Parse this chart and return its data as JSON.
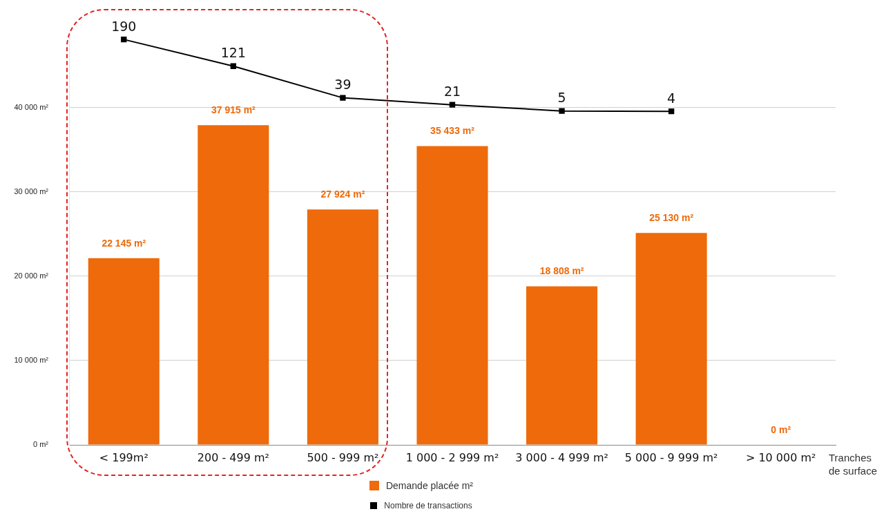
{
  "chart_data": {
    "type": "bar",
    "categories": [
      "< 199m²",
      "200 - 499 m²",
      "500 - 999 m²",
      "1 000 - 2 999 m²",
      "3 000 - 4 999 m²",
      "5 000 - 9 999 m²",
      "> 10 000 m²"
    ],
    "xlabel": "Tranches de surface",
    "series": [
      {
        "name": "Demande placée m²",
        "color": "#ee6a0b",
        "values": [
          22145,
          37915,
          27924,
          35433,
          18808,
          25130,
          0
        ],
        "value_labels": [
          "22 145 m²",
          "37 915 m²",
          "27 924 m²",
          "35 433 m²",
          "18 808 m²",
          "25 130 m²",
          "0 m²"
        ]
      },
      {
        "name": "Nombre de transactions",
        "type": "line",
        "axis": "y2",
        "color": "#000000",
        "values": [
          190,
          121,
          39,
          21,
          5,
          4,
          null
        ],
        "value_labels": [
          "190",
          "121",
          "39",
          "21",
          "5",
          "4",
          null
        ]
      }
    ],
    "ylim": [
      0,
      49000
    ],
    "yticks": [
      {
        "value": 0,
        "label": "0 m²"
      },
      {
        "value": 10000,
        "label": "10 000 m²"
      },
      {
        "value": 20000,
        "label": "20 000 m²"
      },
      {
        "value": 30000,
        "label": "30 000 m²"
      },
      {
        "value": 40000,
        "label": "40 000 m²"
      }
    ],
    "tick_labels": "xy",
    "grid": "y",
    "marker": "square",
    "legend": "bottom"
  }
}
